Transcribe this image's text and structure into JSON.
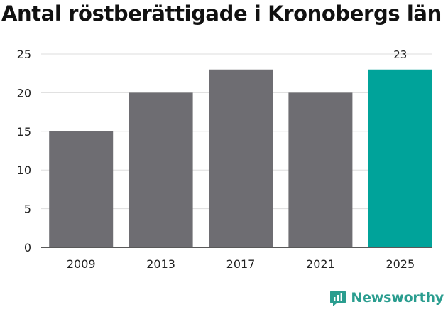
{
  "title": "Antal röstberättigade i Kronobergs län",
  "brand": {
    "name": "Newsworthy",
    "icon": "bar-chart-logo-icon"
  },
  "chart_data": {
    "type": "bar",
    "categories": [
      "2009",
      "2013",
      "2017",
      "2021",
      "2025"
    ],
    "values": [
      15,
      20,
      23,
      20,
      23
    ],
    "data_labels": [
      null,
      null,
      null,
      null,
      "23"
    ],
    "highlight_index": 4,
    "title": "Antal röstberättigade i Kronobergs län",
    "xlabel": "",
    "ylabel": "",
    "ylim": [
      0,
      25
    ],
    "yticks": [
      0,
      5,
      10,
      15,
      20,
      25
    ],
    "grid": true,
    "colors": {
      "bar": "#6e6d72",
      "highlight": "#00a39a",
      "grid": "#dddddd",
      "axis": "#222222",
      "text": "#222222"
    }
  }
}
